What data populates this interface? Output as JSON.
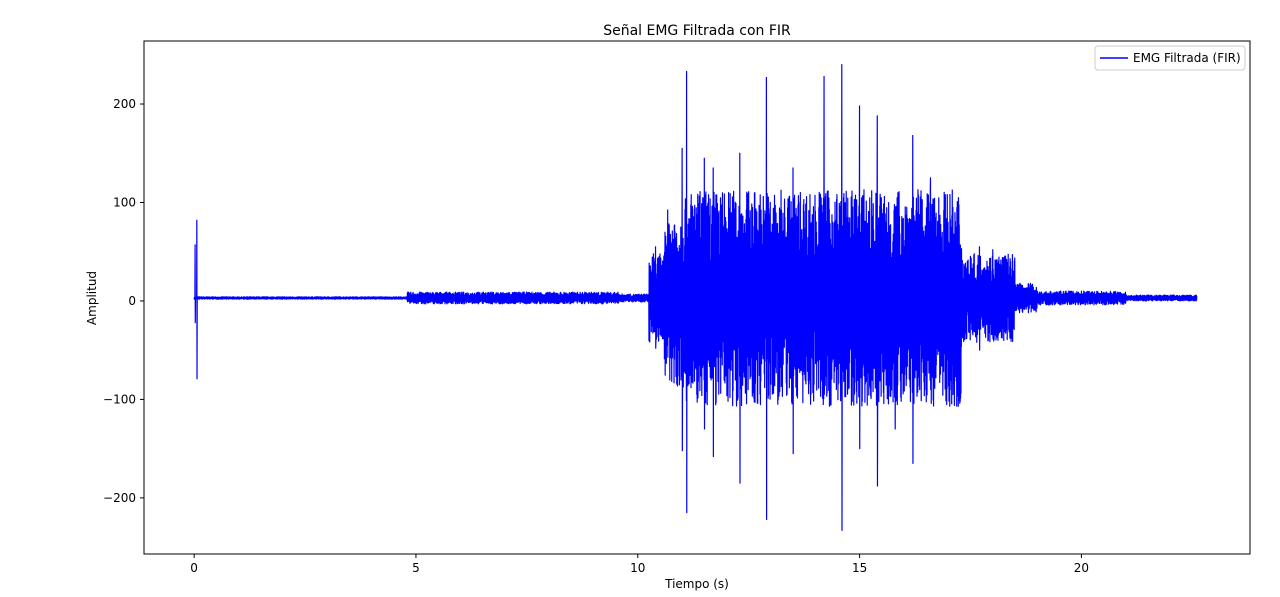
{
  "chart_data": {
    "type": "line",
    "title": "Señal EMG Filtrada con FIR",
    "xlabel": "Tiempo (s)",
    "ylabel": "Amplitud",
    "xlim": [
      -1.13,
      23.8
    ],
    "ylim": [
      -257,
      264
    ],
    "xticks": [
      0,
      5,
      10,
      15,
      20
    ],
    "yticks": [
      -200,
      -100,
      0,
      100,
      200
    ],
    "xtick_labels": [
      "0",
      "5",
      "10",
      "15",
      "20"
    ],
    "ytick_labels": [
      "−200",
      "−100",
      "0",
      "100",
      "200"
    ],
    "grid": false,
    "legend_position": "top-right",
    "series": [
      {
        "name": "EMG Filtrada (FIR)",
        "color": "#0000ff",
        "x_range": [
          0,
          22.6
        ],
        "baseline": 3,
        "peaks": [
          {
            "t": 0.02,
            "max": 57,
            "min": -22
          },
          {
            "t": 0.06,
            "max": 82,
            "min": -79
          },
          {
            "t": 10.4,
            "max": 55,
            "min": -48
          },
          {
            "t": 11.0,
            "max": 155,
            "min": -152
          },
          {
            "t": 11.1,
            "max": 233,
            "min": -215
          },
          {
            "t": 11.5,
            "max": 145,
            "min": -130
          },
          {
            "t": 11.7,
            "max": 135,
            "min": -158
          },
          {
            "t": 12.3,
            "max": 150,
            "min": -185
          },
          {
            "t": 12.9,
            "max": 227,
            "min": -222
          },
          {
            "t": 13.5,
            "max": 135,
            "min": -155
          },
          {
            "t": 14.2,
            "max": 228,
            "min": -95
          },
          {
            "t": 14.6,
            "max": 240,
            "min": -233
          },
          {
            "t": 15.0,
            "max": 198,
            "min": -150
          },
          {
            "t": 15.4,
            "max": 188,
            "min": -188
          },
          {
            "t": 15.8,
            "max": 85,
            "min": -130
          },
          {
            "t": 16.2,
            "max": 168,
            "min": -165
          },
          {
            "t": 16.6,
            "max": 125,
            "min": -90
          },
          {
            "t": 17.1,
            "max": 95,
            "min": -95
          },
          {
            "t": 17.7,
            "max": 55,
            "min": -50
          },
          {
            "t": 18.0,
            "max": 52,
            "min": -38
          },
          {
            "t": 18.4,
            "max": 40,
            "min": -20
          }
        ]
      }
    ]
  }
}
